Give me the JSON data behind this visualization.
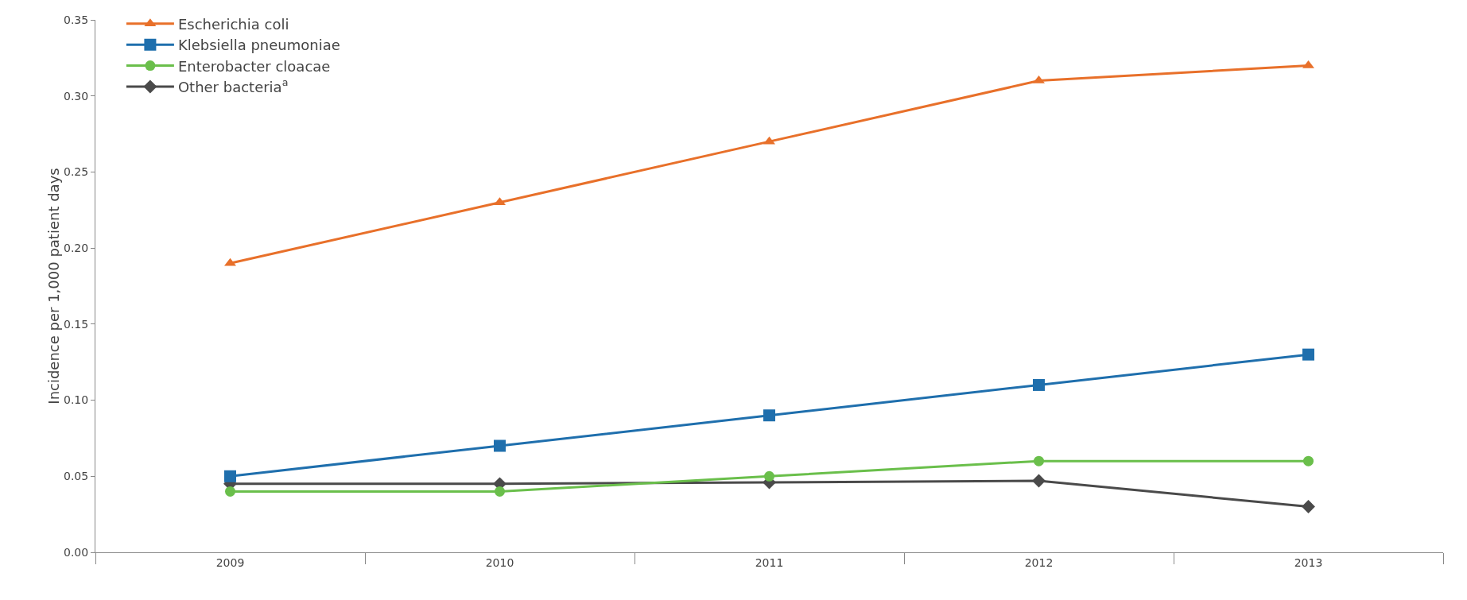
{
  "chart_data": {
    "type": "line",
    "ylabel": "Incidence per 1,000 patient days",
    "categories": [
      "2009",
      "2010",
      "2011",
      "2012",
      "2013"
    ],
    "series": [
      {
        "name": "Escherichia coli",
        "color": "#e8702a",
        "marker": "triangle",
        "values": [
          0.19,
          0.23,
          0.27,
          0.31,
          0.32
        ]
      },
      {
        "name": "Klebsiella pneumoniae",
        "color": "#1f6fad",
        "marker": "square",
        "values": [
          0.05,
          0.07,
          0.09,
          0.11,
          0.13
        ]
      },
      {
        "name": "Enterobacter cloacae",
        "color": "#6abf4b",
        "marker": "circle",
        "values": [
          0.04,
          0.04,
          0.05,
          0.06,
          0.06
        ]
      },
      {
        "name": "Other bacteria$^{a}$",
        "color": "#4a4a4a",
        "marker": "diamond",
        "values": [
          0.045,
          0.045,
          0.046,
          0.047,
          0.03
        ]
      }
    ],
    "ylim": [
      0,
      0.35
    ],
    "yticks": [
      {
        "value": 0,
        "label": "0.00"
      },
      {
        "value": 0.05,
        "label": "0.05"
      },
      {
        "value": 0.1,
        "label": "0.10"
      },
      {
        "value": 0.15,
        "label": "0.15"
      },
      {
        "value": 0.2,
        "label": "0.20"
      },
      {
        "value": 0.25,
        "label": "0.25"
      },
      {
        "value": 0.3,
        "label": "0.30"
      },
      {
        "value": 0.35,
        "label": "0.35"
      }
    ],
    "grid": false,
    "legend": "top left",
    "line_style": "solid"
  }
}
